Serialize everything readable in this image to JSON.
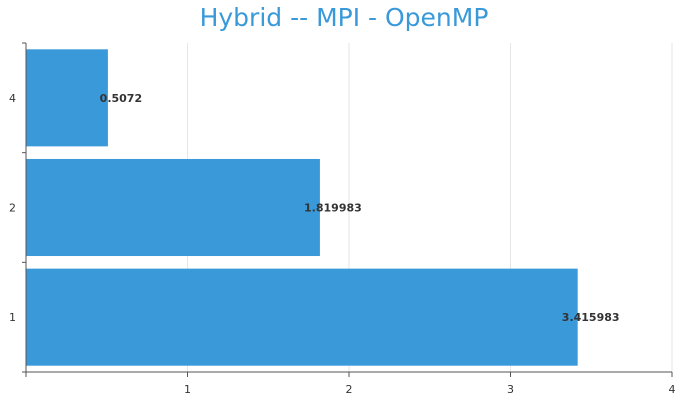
{
  "chart_data": {
    "type": "bar",
    "orientation": "horizontal",
    "title": "Hybrid -- MPI - OpenMP",
    "xlabel": "",
    "ylabel": "",
    "categories": [
      "1",
      "2",
      "4"
    ],
    "values": [
      3.415983,
      1.819983,
      0.5072
    ],
    "data_labels": [
      "3.415983",
      "1.819983",
      "0.5072"
    ],
    "xlim": [
      0,
      4
    ],
    "x_ticks": [
      "1",
      "2",
      "3",
      "4"
    ],
    "grid": true,
    "bar_color": "#3a99d9",
    "title_color": "#3a99d9"
  }
}
